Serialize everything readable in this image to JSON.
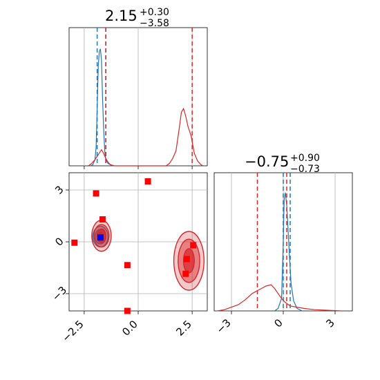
{
  "colors": {
    "blue": "#1f77b4",
    "red": "#d62728",
    "marker_red": "#ff0000",
    "marker_blue": "#0000ff",
    "grid": "#b0b0b0"
  },
  "titles": {
    "p1": {
      "value": "2.15",
      "upper": "+0.30",
      "lower": "−3.58"
    },
    "p2": {
      "value": "−0.75",
      "upper": "+0.90",
      "lower": "−0.73"
    }
  },
  "chart_data": [
    {
      "type": "histogram",
      "panel": "marginal-param-1",
      "x_range": [
        -3.2,
        3.2
      ],
      "series": [
        {
          "color": "#1f77b4",
          "points": [
            [
              -2.2,
              0
            ],
            [
              -2.1,
              0.01
            ],
            [
              -2.0,
              0.05
            ],
            [
              -1.95,
              0.15
            ],
            [
              -1.9,
              0.45
            ],
            [
              -1.85,
              0.8
            ],
            [
              -1.8,
              0.92
            ],
            [
              -1.75,
              0.94
            ],
            [
              -1.7,
              0.85
            ],
            [
              -1.65,
              0.55
            ],
            [
              -1.6,
              0.3
            ],
            [
              -1.55,
              0.12
            ],
            [
              -1.5,
              0.05
            ],
            [
              -1.4,
              0.02
            ],
            [
              -1.3,
              0.01
            ],
            [
              -1.2,
              0
            ]
          ],
          "quantiles": [
            -1.9,
            -1.5
          ]
        },
        {
          "color": "#d62728",
          "points": [
            [
              -2.3,
              0
            ],
            [
              -2.15,
              0.02
            ],
            [
              -2.0,
              0.05
            ],
            [
              -1.85,
              0.09
            ],
            [
              -1.7,
              0.13
            ],
            [
              -1.6,
              0.1
            ],
            [
              -1.5,
              0.06
            ],
            [
              -1.4,
              0.03
            ],
            [
              -1.3,
              0.01
            ],
            [
              -1.1,
              0
            ],
            [
              1.3,
              0
            ],
            [
              1.45,
              0.02
            ],
            [
              1.6,
              0.06
            ],
            [
              1.75,
              0.12
            ],
            [
              1.9,
              0.3
            ],
            [
              2.0,
              0.43
            ],
            [
              2.1,
              0.46
            ],
            [
              2.2,
              0.4
            ],
            [
              2.3,
              0.32
            ],
            [
              2.45,
              0.24
            ],
            [
              2.6,
              0.1
            ],
            [
              2.75,
              0.04
            ],
            [
              2.9,
              0.01
            ],
            [
              3.0,
              0
            ]
          ],
          "quantiles": [
            -1.5,
            2.5
          ]
        }
      ],
      "ticks": [
        -2.5,
        0.0,
        2.5
      ]
    },
    {
      "type": "histogram",
      "panel": "marginal-param-2",
      "x_range": [
        -4.0,
        4.0
      ],
      "series": [
        {
          "color": "#1f77b4",
          "points": [
            [
              -0.5,
              0
            ],
            [
              -0.3,
              0.02
            ],
            [
              -0.1,
              0.1
            ],
            [
              0.0,
              0.55
            ],
            [
              0.05,
              0.9
            ],
            [
              0.12,
              0.95
            ],
            [
              0.2,
              0.85
            ],
            [
              0.28,
              0.65
            ],
            [
              0.35,
              0.45
            ],
            [
              0.45,
              0.22
            ],
            [
              0.6,
              0.08
            ],
            [
              0.8,
              0.02
            ],
            [
              1.1,
              0
            ]
          ],
          "quantiles": [
            0.0,
            0.4
          ]
        },
        {
          "color": "#d62728",
          "points": [
            [
              -3.8,
              0
            ],
            [
              -3.4,
              0.01
            ],
            [
              -3.0,
              0.03
            ],
            [
              -2.6,
              0.05
            ],
            [
              -2.2,
              0.09
            ],
            [
              -1.8,
              0.14
            ],
            [
              -1.4,
              0.17
            ],
            [
              -1.0,
              0.2
            ],
            [
              -0.7,
              0.21
            ],
            [
              -0.5,
              0.18
            ],
            [
              -0.3,
              0.14
            ],
            [
              -0.1,
              0.1
            ],
            [
              0.1,
              0.07
            ],
            [
              0.4,
              0.04
            ],
            [
              0.8,
              0.03
            ],
            [
              1.2,
              0.02
            ],
            [
              1.8,
              0.01
            ],
            [
              2.6,
              0.005
            ],
            [
              3.4,
              0
            ]
          ],
          "quantiles": [
            -1.5,
            0.2
          ]
        }
      ],
      "ticks": [
        -3,
        0,
        3
      ]
    },
    {
      "type": "contour-scatter",
      "panel": "joint-param-1-vs-param-2",
      "x_range": [
        -3.2,
        3.2
      ],
      "y_range": [
        -4.0,
        4.0
      ],
      "x_ticks": [
        -2.5,
        0.0,
        2.5
      ],
      "y_ticks": [
        -3,
        0,
        3
      ],
      "contours": [
        {
          "color": "#1f77b4",
          "center": [
            -1.75,
            0.3
          ],
          "level_radii": [
            [
              0.35,
              0.6
            ],
            [
              0.25,
              0.42
            ],
            [
              0.15,
              0.25
            ]
          ]
        },
        {
          "color": "#d62728",
          "center": [
            -1.7,
            0.35
          ],
          "level_radii": [
            [
              0.45,
              0.9
            ],
            [
              0.35,
              0.65
            ],
            [
              0.2,
              0.4
            ]
          ]
        },
        {
          "color": "#d62728",
          "center": [
            2.35,
            -1.1
          ],
          "level_radii": [
            [
              0.7,
              1.7
            ],
            [
              0.5,
              1.25
            ],
            [
              0.25,
              0.7
            ]
          ]
        }
      ],
      "markers": [
        {
          "color": "#ff0000",
          "x": -1.95,
          "y": 2.8
        },
        {
          "color": "#ff0000",
          "x": 0.45,
          "y": 3.5
        },
        {
          "color": "#ff0000",
          "x": -1.65,
          "y": 1.3
        },
        {
          "color": "#ff0000",
          "x": -2.95,
          "y": -0.05
        },
        {
          "color": "#ff0000",
          "x": -0.5,
          "y": -1.35
        },
        {
          "color": "#ff0000",
          "x": -0.5,
          "y": -4.0
        },
        {
          "color": "#ff0000",
          "x": 2.55,
          "y": -0.2
        },
        {
          "color": "#ff0000",
          "x": 2.25,
          "y": -1.0
        },
        {
          "color": "#ff0000",
          "x": 2.2,
          "y": -1.85
        },
        {
          "color": "#0000ff",
          "x": -1.75,
          "y": 0.25
        }
      ]
    }
  ]
}
